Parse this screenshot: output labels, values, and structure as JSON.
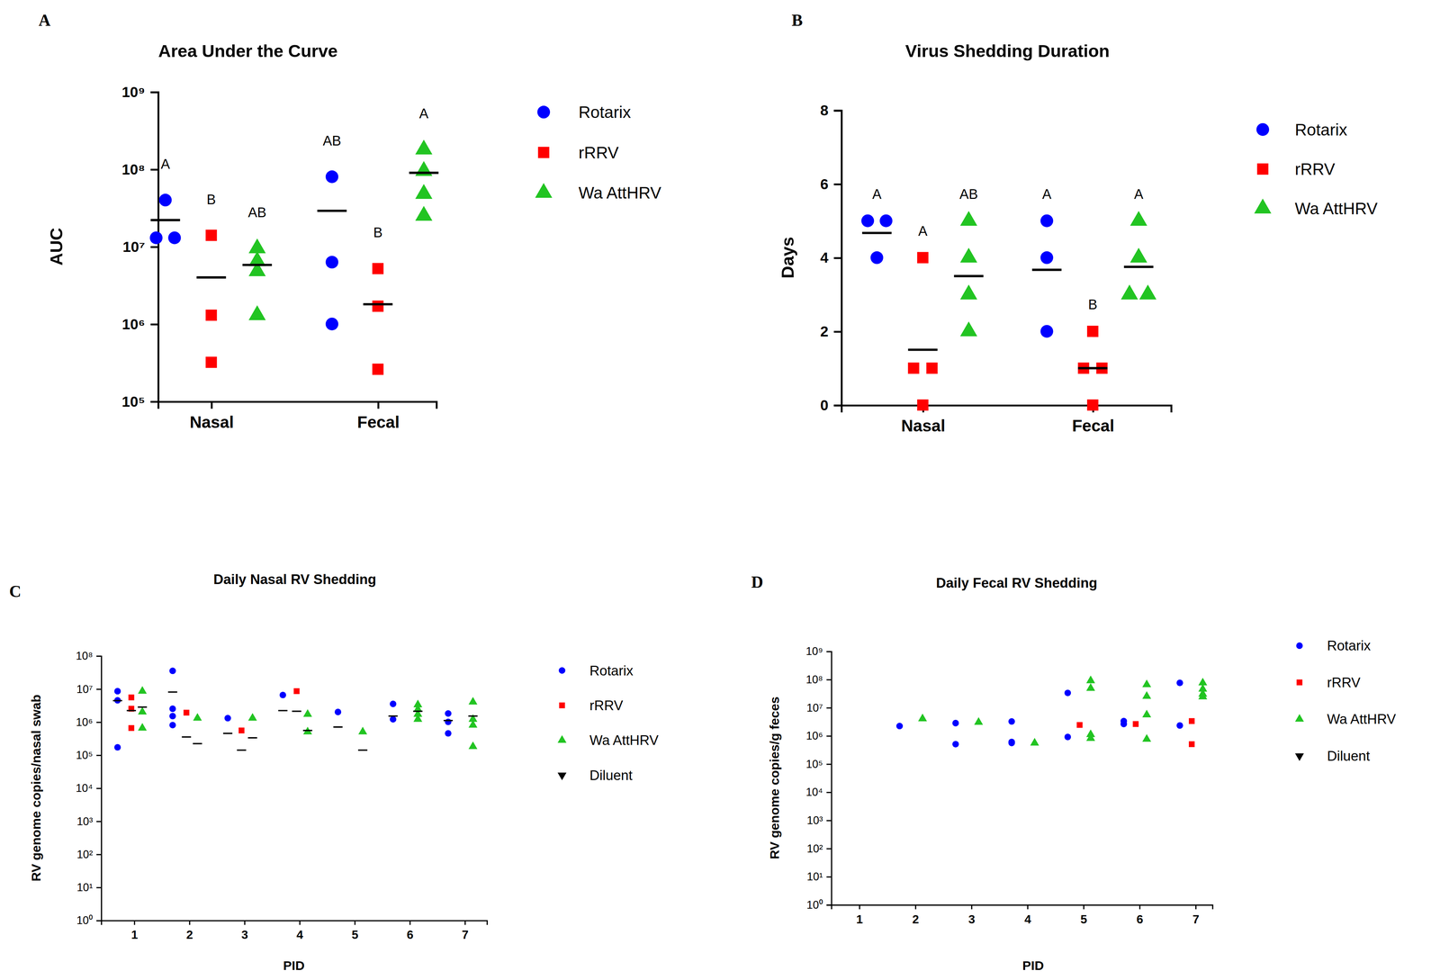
{
  "chart_data": [
    {
      "type": "scatter",
      "panel_label": "A",
      "title": "Area Under the Curve",
      "y_label": "AUC",
      "categories": [
        "Nasal",
        "Fecal"
      ],
      "log": "y",
      "grid": false,
      "legend": "right",
      "ylim": [
        100000,
        1000000000
      ],
      "yticks": [
        {
          "value": 100000,
          "label": "10⁵"
        },
        {
          "value": 1000000,
          "label": "10⁶"
        },
        {
          "value": 10000000,
          "label": "10⁷"
        },
        {
          "value": 100000000,
          "label": "10⁸"
        },
        {
          "value": 1000000000,
          "label": "10⁹"
        }
      ],
      "series": [
        {
          "name": "Rotarix",
          "color": "#0000ff",
          "marker": "circle",
          "values": [
            [
              40000000,
              13000000,
              13000000
            ],
            [
              80000000,
              6300000,
              1000000
            ]
          ],
          "means": [
            22000000,
            29000000
          ],
          "letters": [
            "A",
            "AB"
          ]
        },
        {
          "name": "rRRV",
          "color": "#ff0000",
          "marker": "square",
          "values": [
            [
              14000000,
              1300000,
              320000
            ],
            [
              5200000,
              1700000,
              260000
            ]
          ],
          "means": [
            4000000,
            1800000
          ],
          "letters": [
            "B",
            "B"
          ]
        },
        {
          "name": "Wa AttHRV",
          "color": "#22c422",
          "marker": "triangle",
          "values": [
            [
              6500000,
              9500000,
              4800000,
              1300000
            ],
            [
              180000000,
              95000000,
              48000000,
              25000000
            ]
          ],
          "means": [
            5800000,
            90000000
          ],
          "letters": [
            "AB",
            "A"
          ]
        }
      ]
    },
    {
      "type": "scatter",
      "panel_label": "B",
      "title": "Virus Shedding Duration",
      "y_label": "Days",
      "categories": [
        "Nasal",
        "Fecal"
      ],
      "grid": false,
      "legend": "right",
      "ylim": [
        0,
        8
      ],
      "yticks": [
        0,
        2,
        4,
        6,
        8
      ],
      "series": [
        {
          "name": "Rotarix",
          "color": "#0000ff",
          "marker": "circle",
          "values": [
            [
              5,
              5,
              4
            ],
            [
              5,
              4,
              2
            ]
          ],
          "means": [
            4.67,
            3.67
          ],
          "letters": [
            "A",
            "A"
          ]
        },
        {
          "name": "rRRV",
          "color": "#ff0000",
          "marker": "square",
          "values": [
            [
              4,
              1,
              1,
              0
            ],
            [
              2,
              1,
              1,
              0
            ]
          ],
          "means": [
            1.5,
            1.0
          ],
          "letters": [
            "A",
            "B"
          ]
        },
        {
          "name": "Wa AttHRV",
          "color": "#22c422",
          "marker": "triangle",
          "values": [
            [
              5,
              4,
              3,
              2
            ],
            [
              5,
              4,
              3,
              3
            ]
          ],
          "means": [
            3.5,
            3.75
          ],
          "letters": [
            "AB",
            "A"
          ]
        }
      ]
    },
    {
      "type": "scatter",
      "panel_label": "C",
      "title": "Daily Nasal RV Shedding",
      "y_label": "RV genome copies/nasal swab",
      "x_label": "PID",
      "x": [
        1,
        2,
        3,
        4,
        5,
        6,
        7
      ],
      "xlim": [
        0.4,
        7.4
      ],
      "xticks": [
        1,
        2,
        3,
        4,
        5,
        6,
        7
      ],
      "log": "y",
      "grid": false,
      "legend": "right",
      "ylim": [
        1,
        100000000
      ],
      "yticks": [
        {
          "value": 1,
          "label": "10⁰"
        },
        {
          "value": 10,
          "label": "10¹"
        },
        {
          "value": 100,
          "label": "10²"
        },
        {
          "value": 1000,
          "label": "10³"
        },
        {
          "value": 10000,
          "label": "10⁴"
        },
        {
          "value": 100000,
          "label": "10⁵"
        },
        {
          "value": 1000000,
          "label": "10⁶"
        },
        {
          "value": 10000000,
          "label": "10⁷"
        },
        {
          "value": 100000000,
          "label": "10⁸"
        }
      ],
      "series": [
        {
          "name": "Rotarix",
          "color": "#0000ff",
          "marker": "circle",
          "values": [
            [
              8500000,
              4500000,
              170000
            ],
            [
              35000000,
              2500000,
              1500000,
              800000
            ],
            [
              1300000
            ],
            [
              6500000
            ],
            [
              2000000
            ],
            [
              3500000,
              1200000
            ],
            [
              1800000,
              1000000,
              450000
            ]
          ],
          "means": [
            4400000,
            8000000,
            450000,
            2200000,
            700000,
            1500000,
            1100000
          ]
        },
        {
          "name": "rRRV",
          "color": "#ff0000",
          "marker": "square",
          "values": [
            [
              5500000,
              2500000,
              650000
            ],
            [
              1900000
            ],
            [
              550000
            ],
            [
              8500000
            ],
            [],
            [],
            []
          ],
          "means": [
            2200000,
            350000,
            140000,
            2100000,
            null,
            null,
            null
          ]
        },
        {
          "name": "Wa AttHRV",
          "color": "#22c422",
          "marker": "triangle",
          "values": [
            [
              8500000,
              2000000,
              650000
            ],
            [
              1300000
            ],
            [
              1300000
            ],
            [
              1700000,
              500000
            ],
            [
              500000
            ],
            [
              3300000,
              2400000,
              1700000,
              1200000
            ],
            [
              4000000,
              1200000,
              800000,
              180000
            ]
          ],
          "means": [
            2800000,
            220000,
            330000,
            550000,
            140000,
            2100000,
            1500000
          ]
        },
        {
          "name": "Diluent",
          "color": "#000000",
          "marker": "triangle-down",
          "values": [
            [],
            [],
            [],
            [],
            [],
            [],
            []
          ]
        }
      ]
    },
    {
      "type": "scatter",
      "panel_label": "D",
      "title": "Daily Fecal RV Shedding",
      "y_label": "RV genome copies/g feces",
      "x_label": "PID",
      "x": [
        1,
        2,
        3,
        4,
        5,
        6,
        7
      ],
      "xlim": [
        0.5,
        7.3
      ],
      "xticks": [
        1,
        2,
        3,
        4,
        5,
        6,
        7
      ],
      "log": "y",
      "grid": false,
      "legend": "right",
      "ylim": [
        1,
        1000000000
      ],
      "yticks": [
        {
          "value": 1,
          "label": "10⁰"
        },
        {
          "value": 10,
          "label": "10¹"
        },
        {
          "value": 100,
          "label": "10²"
        },
        {
          "value": 1000,
          "label": "10³"
        },
        {
          "value": 10000,
          "label": "10⁴"
        },
        {
          "value": 100000,
          "label": "10⁵"
        },
        {
          "value": 1000000,
          "label": "10⁶"
        },
        {
          "value": 10000000,
          "label": "10⁷"
        },
        {
          "value": 100000000,
          "label": "10⁸"
        },
        {
          "value": 1000000000,
          "label": "10⁹"
        }
      ],
      "series": [
        {
          "name": "Rotarix",
          "color": "#0000ff",
          "marker": "circle",
          "values": [
            [],
            [
              2200000
            ],
            [
              2800000,
              500000
            ],
            [
              3200000,
              600000,
              550000
            ],
            [
              33000000,
              900000
            ],
            [
              3300000,
              2600000
            ],
            [
              75000000,
              2300000
            ]
          ]
        },
        {
          "name": "rRRV",
          "color": "#ff0000",
          "marker": "square",
          "values": [
            [],
            [],
            [],
            [],
            [
              2400000
            ],
            [
              2600000
            ],
            [
              3300000,
              500000
            ]
          ]
        },
        {
          "name": "Wa AttHRV",
          "color": "#22c422",
          "marker": "triangle",
          "values": [
            [],
            [
              4000000
            ],
            [
              3000000
            ],
            [
              550000
            ],
            [
              90000000,
              48000000,
              1100000,
              800000
            ],
            [
              65000000,
              25000000,
              5500000,
              750000
            ],
            [
              75000000,
              45000000,
              30000000,
              24000000
            ]
          ]
        },
        {
          "name": "Diluent",
          "color": "#000000",
          "marker": "triangle-down",
          "values": [
            [],
            [],
            [],
            [],
            [],
            [],
            []
          ]
        }
      ]
    }
  ]
}
